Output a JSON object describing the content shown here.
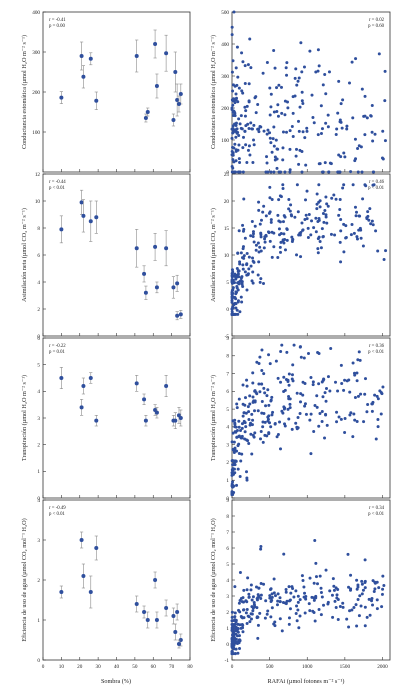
{
  "figure": {
    "x_left_label": "Sombra (%)",
    "x_right_label": "RAFAi (µmol fotones m⁻² s⁻¹)"
  },
  "chart_data": [
    {
      "id": "gs_shade",
      "type": "scatter",
      "ylabel": "Conductancia estomática (µmol H₂O m⁻² s⁻¹)",
      "xlim": [
        0,
        80
      ],
      "ylim": [
        0,
        400
      ],
      "xticks": [
        0,
        10,
        20,
        30,
        40,
        50,
        60,
        70,
        80
      ],
      "yticks": [
        100,
        200,
        300,
        400
      ],
      "show_xticklabels": false,
      "stats": [
        "r = -0.41",
        "p = 0.00"
      ],
      "points": [
        {
          "x": 10,
          "y": 186,
          "err": 15
        },
        {
          "x": 21,
          "y": 290,
          "err": 35
        },
        {
          "x": 22,
          "y": 238,
          "err": 28
        },
        {
          "x": 26,
          "y": 283,
          "err": 15
        },
        {
          "x": 29,
          "y": 178,
          "err": 22
        },
        {
          "x": 51,
          "y": 290,
          "err": 40
        },
        {
          "x": 56,
          "y": 135,
          "err": 10
        },
        {
          "x": 57,
          "y": 150,
          "err": 10
        },
        {
          "x": 61,
          "y": 320,
          "err": 35
        },
        {
          "x": 62,
          "y": 215,
          "err": 30
        },
        {
          "x": 67,
          "y": 297,
          "err": 45
        },
        {
          "x": 71,
          "y": 130,
          "err": 15
        },
        {
          "x": 72,
          "y": 250,
          "err": 50
        },
        {
          "x": 73,
          "y": 180,
          "err": 40
        },
        {
          "x": 75,
          "y": 195,
          "err": 25
        },
        {
          "x": 74,
          "y": 170,
          "err": 20
        }
      ]
    },
    {
      "id": "gs_par",
      "type": "scatter",
      "ylabel": "Conductancia estomática (µmol H₂O m⁻² s⁻¹)",
      "xlim": [
        0,
        2100
      ],
      "ylim": [
        0,
        500
      ],
      "xticks": [
        0,
        500,
        1000,
        1500,
        2000
      ],
      "yticks": [
        0,
        100,
        200,
        300,
        400,
        500
      ],
      "show_xticklabels": false,
      "stats": [
        "r = 0.02",
        "p = 0.60"
      ],
      "cloud": {
        "seed": 11,
        "shape": "flat",
        "xmax": 2050,
        "ymax": 500,
        "ybase": 120,
        "yspread": 170,
        "n": 300
      }
    },
    {
      "id": "an_shade",
      "type": "scatter",
      "ylabel": "Asimilación neta (µmol CO₂ m⁻² s⁻¹)",
      "xlim": [
        0,
        80
      ],
      "ylim": [
        0,
        12
      ],
      "xticks": [
        0,
        10,
        20,
        30,
        40,
        50,
        60,
        70,
        80
      ],
      "yticks": [
        0,
        2,
        4,
        6,
        8,
        10,
        12
      ],
      "show_xticklabels": false,
      "stats": [
        "r = -0.44",
        "p < 0.01"
      ],
      "points": [
        {
          "x": 10,
          "y": 7.9,
          "err": 1.0
        },
        {
          "x": 21,
          "y": 9.9,
          "err": 0.9
        },
        {
          "x": 22,
          "y": 8.9,
          "err": 1.2
        },
        {
          "x": 26,
          "y": 8.5,
          "err": 1.5
        },
        {
          "x": 29,
          "y": 8.8,
          "err": 1.2
        },
        {
          "x": 51,
          "y": 6.5,
          "err": 1.4
        },
        {
          "x": 55,
          "y": 4.6,
          "err": 0.6
        },
        {
          "x": 56,
          "y": 3.2,
          "err": 0.5
        },
        {
          "x": 61,
          "y": 6.6,
          "err": 1.0
        },
        {
          "x": 62,
          "y": 3.6,
          "err": 0.4
        },
        {
          "x": 67,
          "y": 6.5,
          "err": 1.3
        },
        {
          "x": 71,
          "y": 3.6,
          "err": 0.8
        },
        {
          "x": 73,
          "y": 3.9,
          "err": 0.6
        },
        {
          "x": 73,
          "y": 1.5,
          "err": 0.3
        },
        {
          "x": 75,
          "y": 1.6,
          "err": 0.3
        }
      ]
    },
    {
      "id": "an_par",
      "type": "scatter",
      "ylabel": "Asimilación neta (µmol CO₂ m⁻² s⁻¹)",
      "xlim": [
        0,
        2100
      ],
      "ylim": [
        -5,
        25
      ],
      "xticks": [
        0,
        500,
        1000,
        1500,
        2000
      ],
      "yticks": [
        -5,
        0,
        5,
        10,
        15,
        20,
        25
      ],
      "show_xticklabels": false,
      "stats": [
        "r = 0.46",
        "p < 0.01"
      ],
      "cloud": {
        "seed": 23,
        "shape": "saturating",
        "xmax": 2050,
        "ymin": -1,
        "ymax": 23,
        "asym": 16,
        "k": 0.004,
        "yspread": 5,
        "n": 320
      }
    },
    {
      "id": "tr_shade",
      "type": "scatter",
      "ylabel": "Transpiración (µmol H₂O m⁻² s⁻¹)",
      "xlim": [
        0,
        80
      ],
      "ylim": [
        0,
        6
      ],
      "xticks": [
        0,
        10,
        20,
        30,
        40,
        50,
        60,
        70,
        80
      ],
      "yticks": [
        0,
        1,
        2,
        3,
        4,
        5,
        6
      ],
      "show_xticklabels": false,
      "stats": [
        "r = -0.22",
        "p = 0.01"
      ],
      "points": [
        {
          "x": 10,
          "y": 4.5,
          "err": 0.4
        },
        {
          "x": 21,
          "y": 3.4,
          "err": 0.3
        },
        {
          "x": 22,
          "y": 4.2,
          "err": 0.3
        },
        {
          "x": 26,
          "y": 4.5,
          "err": 0.2
        },
        {
          "x": 29,
          "y": 2.9,
          "err": 0.2
        },
        {
          "x": 51,
          "y": 4.3,
          "err": 0.3
        },
        {
          "x": 55,
          "y": 3.7,
          "err": 0.2
        },
        {
          "x": 56,
          "y": 2.9,
          "err": 0.2
        },
        {
          "x": 61,
          "y": 3.3,
          "err": 0.2
        },
        {
          "x": 62,
          "y": 3.2,
          "err": 0.2
        },
        {
          "x": 67,
          "y": 4.2,
          "err": 0.4
        },
        {
          "x": 71,
          "y": 2.9,
          "err": 0.2
        },
        {
          "x": 72,
          "y": 2.9,
          "err": 0.3
        },
        {
          "x": 74,
          "y": 3.1,
          "err": 0.3
        },
        {
          "x": 75,
          "y": 3.0,
          "err": 0.3
        }
      ]
    },
    {
      "id": "tr_par",
      "type": "scatter",
      "ylabel": "Transpiración (µmol H₂O m⁻² s⁻¹)",
      "xlim": [
        0,
        2100
      ],
      "ylim": [
        0,
        9
      ],
      "xticks": [
        0,
        500,
        1000,
        1500,
        2000
      ],
      "yticks": [
        0,
        1,
        2,
        3,
        4,
        5,
        6,
        7,
        8,
        9
      ],
      "show_xticklabels": false,
      "stats": [
        "r = 0.36",
        "p < 0.01"
      ],
      "cloud": {
        "seed": 37,
        "shape": "saturating",
        "xmax": 2050,
        "ymin": 0.2,
        "ymax": 8.6,
        "asym": 4.5,
        "k": 0.006,
        "base": 1.2,
        "yspread": 2.0,
        "n": 320
      }
    },
    {
      "id": "wue_shade",
      "type": "scatter",
      "ylabel": "Eficiencia de uso de agua (µmol CO₂ mol⁻¹ H₂O)",
      "xlim": [
        0,
        80
      ],
      "ylim": [
        0,
        4
      ],
      "xticks": [
        0,
        10,
        20,
        30,
        40,
        50,
        60,
        70,
        80
      ],
      "yticks": [
        0,
        1,
        2,
        3,
        4
      ],
      "show_xticklabels": true,
      "stats": [
        "r = -0.49",
        "p < 0.01"
      ],
      "points": [
        {
          "x": 10,
          "y": 1.7,
          "err": 0.15
        },
        {
          "x": 21,
          "y": 3.0,
          "err": 0.2
        },
        {
          "x": 22,
          "y": 2.1,
          "err": 0.3
        },
        {
          "x": 26,
          "y": 1.7,
          "err": 0.4
        },
        {
          "x": 29,
          "y": 2.8,
          "err": 0.3
        },
        {
          "x": 51,
          "y": 1.4,
          "err": 0.2
        },
        {
          "x": 55,
          "y": 1.2,
          "err": 0.15
        },
        {
          "x": 57,
          "y": 1.0,
          "err": 0.2
        },
        {
          "x": 61,
          "y": 2.0,
          "err": 0.2
        },
        {
          "x": 62,
          "y": 1.0,
          "err": 0.2
        },
        {
          "x": 67,
          "y": 1.3,
          "err": 0.2
        },
        {
          "x": 71,
          "y": 1.1,
          "err": 0.2
        },
        {
          "x": 72,
          "y": 0.7,
          "err": 0.2
        },
        {
          "x": 73,
          "y": 1.2,
          "err": 0.2
        },
        {
          "x": 75,
          "y": 0.5,
          "err": 0.15
        },
        {
          "x": 74,
          "y": 0.4,
          "err": 0.1
        }
      ]
    },
    {
      "id": "wue_par",
      "type": "scatter",
      "ylabel": "Eficiencia de uso de agua (µmol CO₂ mol⁻¹ H₂O)",
      "xlim": [
        0,
        2100
      ],
      "ylim": [
        -1,
        9
      ],
      "xticks": [
        0,
        500,
        1000,
        1500,
        2000
      ],
      "yticks": [
        -1,
        0,
        1,
        2,
        3,
        4,
        5,
        6,
        7,
        8,
        9
      ],
      "show_xticklabels": true,
      "stats": [
        "r = 0.34",
        "p < 0.01"
      ],
      "cloud": {
        "seed": 53,
        "shape": "saturating",
        "xmax": 2050,
        "ymin": -0.6,
        "ymax": 6.5,
        "asym": 2.6,
        "k": 0.006,
        "base": 0.2,
        "yspread": 1.3,
        "n": 320
      }
    }
  ]
}
